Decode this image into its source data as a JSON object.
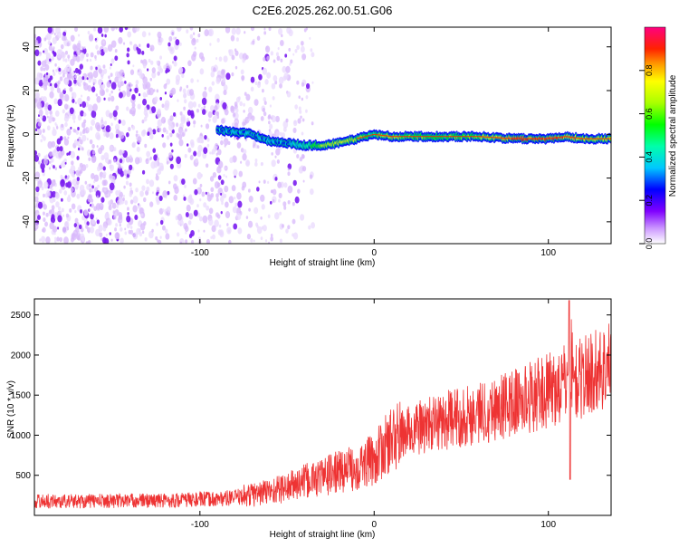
{
  "page": {
    "title": "C2E6.2025.262.00.51.G06"
  },
  "chart_data": [
    {
      "type": "heatmap",
      "title": "C2E6.2025.262.00.51.G06",
      "xlabel": "Height of straight line (km)",
      "ylabel": "Frequency (Hz)",
      "xlim": [
        -195,
        136
      ],
      "ylim": [
        -50,
        49
      ],
      "x_ticks": [
        -100,
        0,
        100
      ],
      "y_ticks": [
        -40,
        -20,
        0,
        20,
        40
      ],
      "colorbar": {
        "label": "Normalized spectral amplitude",
        "range": [
          0,
          1
        ],
        "ticks": [
          0.0,
          0.2,
          0.4,
          0.6,
          0.8
        ],
        "tick_labels": [
          "0.0",
          "0.2",
          "0.4",
          "0.6",
          "0.8"
        ],
        "colormap": [
          "#ffffff",
          "#8000ff",
          "#0000ff",
          "#00ffff",
          "#00ff00",
          "#ffff00",
          "#ff8000",
          "#ff0000",
          "#ff0080"
        ]
      },
      "signal_track": {
        "x": [
          -90,
          -80,
          -70,
          -60,
          -50,
          -40,
          -30,
          -20,
          -10,
          0,
          10,
          20,
          40,
          60,
          80,
          100,
          110,
          120,
          136
        ],
        "y": [
          2,
          1,
          0,
          -3,
          -4,
          -5,
          -5,
          -4,
          -2,
          0,
          -1,
          -1,
          -1,
          -1,
          -2,
          -2,
          -1,
          -2,
          -2
        ],
        "amplitude": [
          0.25,
          0.3,
          0.3,
          0.3,
          0.3,
          0.45,
          0.65,
          0.7,
          0.65,
          0.5,
          0.75,
          0.6,
          0.55,
          0.65,
          0.85,
          0.85,
          0.8,
          0.75,
          0.7
        ]
      },
      "noise_region": {
        "x_from": -195,
        "x_to": -35
      },
      "grid": false
    },
    {
      "type": "line",
      "xlabel": "Height of straight line (km)",
      "ylabel": "SNR (10 * v/v)",
      "xlim": [
        -195,
        136
      ],
      "ylim": [
        0,
        2700
      ],
      "x_ticks": [
        -100,
        0,
        100
      ],
      "y_ticks": [
        500,
        1000,
        1500,
        2000,
        2500
      ],
      "color": "#ee3333",
      "series": [
        {
          "x": [
            -195,
            -180,
            -160,
            -140,
            -120,
            -100,
            -90,
            -80,
            -70,
            -60,
            -50,
            -40,
            -30,
            -20,
            -10,
            0,
            5,
            10,
            20,
            30,
            40,
            50,
            60,
            70,
            80,
            90,
            100,
            110,
            112,
            115,
            120,
            130,
            136
          ],
          "y": [
            180,
            175,
            180,
            185,
            185,
            200,
            205,
            220,
            260,
            300,
            350,
            420,
            480,
            550,
            600,
            700,
            820,
            950,
            1050,
            1120,
            1180,
            1230,
            1280,
            1340,
            1400,
            1480,
            1550,
            1640,
            2100,
            1650,
            1730,
            1830,
            1880
          ]
        }
      ],
      "grid": false
    }
  ]
}
